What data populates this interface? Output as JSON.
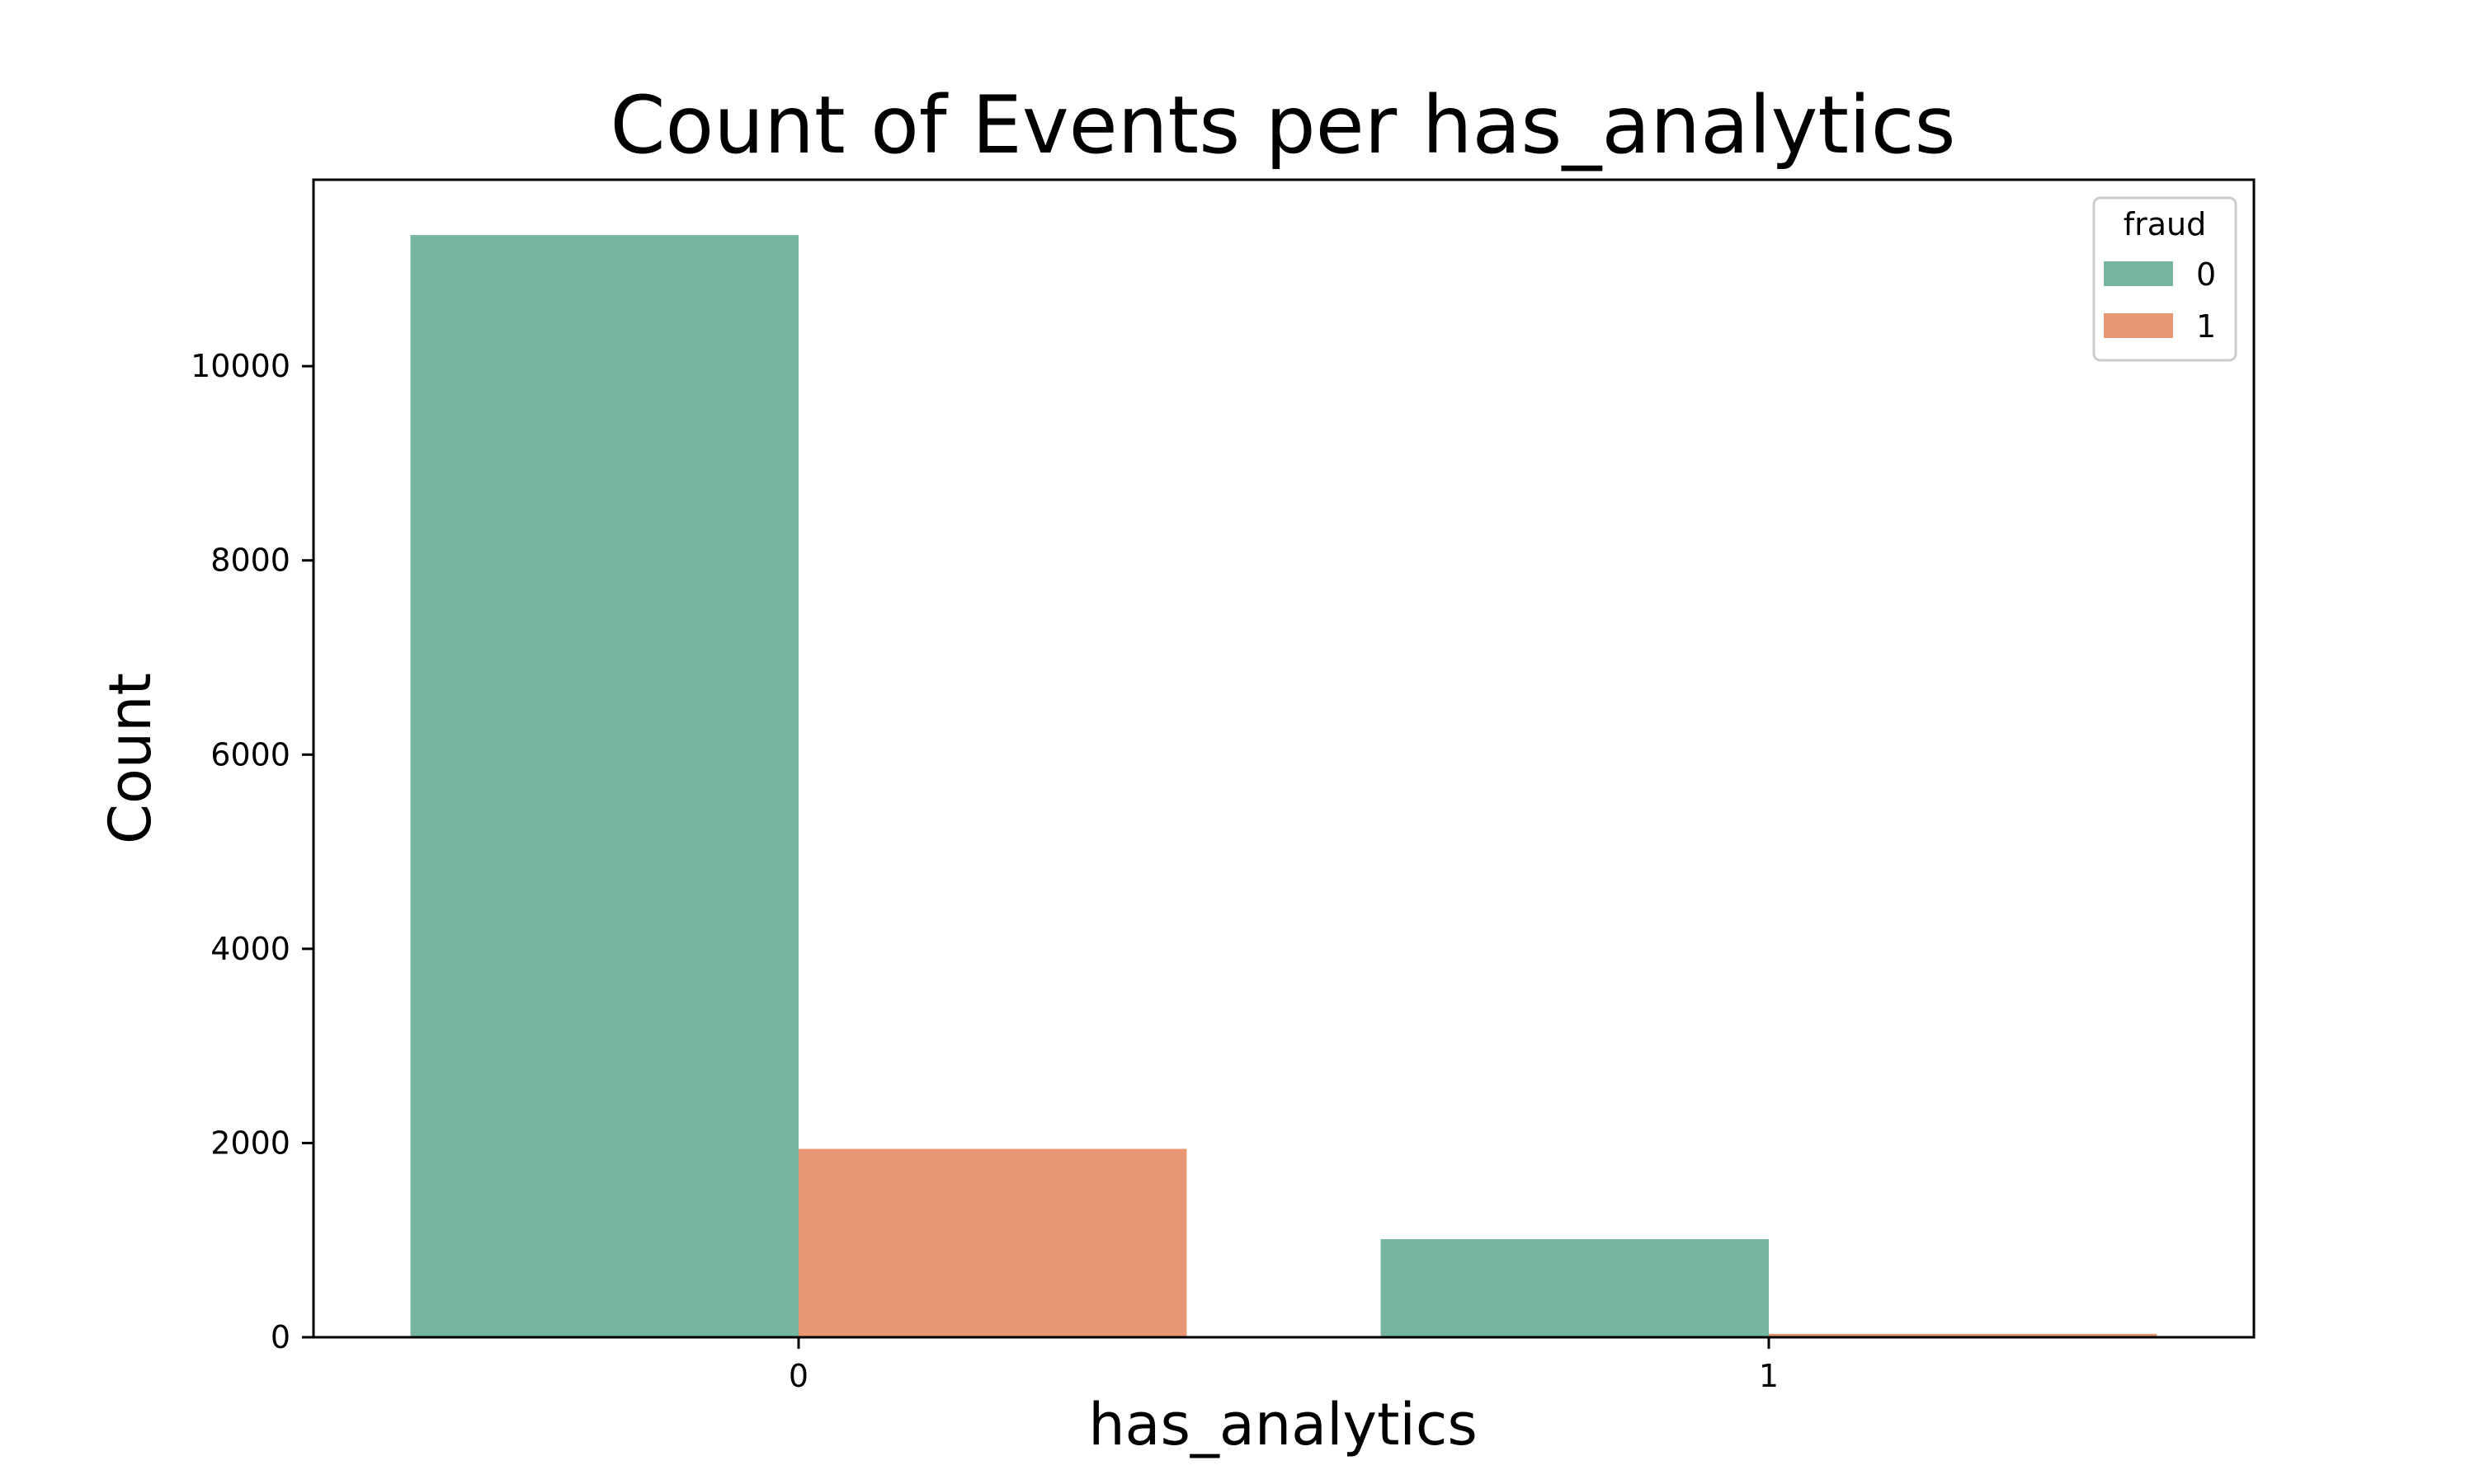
{
  "chart_data": {
    "type": "bar",
    "title": "Count of Events per has_analytics",
    "xlabel": "has_analytics",
    "ylabel": "Count",
    "categories": [
      "0",
      "1"
    ],
    "series": [
      {
        "name": "0",
        "values": [
          11350,
          1010
        ],
        "color": "#75b5a0"
      },
      {
        "name": "1",
        "values": [
          1940,
          35
        ],
        "color": "#e89774"
      }
    ],
    "ylim": [
      0,
      11920
    ],
    "yticks": [
      0,
      2000,
      4000,
      6000,
      8000,
      10000
    ],
    "legend": {
      "title": "fraud",
      "placement": "top-right"
    },
    "grid": false
  }
}
